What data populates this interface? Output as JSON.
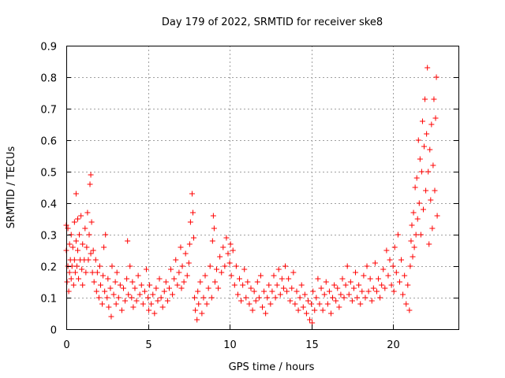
{
  "chart_data": {
    "type": "scatter",
    "title": "Day 179 of 2022, SRMTID for receiver ske8",
    "xlabel": "GPS time / hours",
    "ylabel": "SRMTID / TECUs",
    "xlim": [
      0,
      24
    ],
    "ylim": [
      0,
      0.9
    ],
    "xticks": [
      0,
      5,
      10,
      15,
      20
    ],
    "yticks": [
      0,
      0.1,
      0.2,
      0.3,
      0.4,
      0.5,
      0.6,
      0.7,
      0.8,
      0.9
    ],
    "ytick_labels": [
      "0",
      "0.1",
      "0.2",
      "0.3",
      "0.4",
      "0.5",
      "0.6",
      "0.7",
      "0.8",
      "0.9"
    ],
    "grid": true,
    "marker": "+",
    "color": "#ff0000",
    "series": [
      {
        "name": "ske8",
        "points": [
          [
            0.0,
            0.25
          ],
          [
            0.0,
            0.33
          ],
          [
            0.05,
            0.15
          ],
          [
            0.1,
            0.2
          ],
          [
            0.1,
            0.32
          ],
          [
            0.15,
            0.12
          ],
          [
            0.2,
            0.18
          ],
          [
            0.2,
            0.27
          ],
          [
            0.25,
            0.22
          ],
          [
            0.3,
            0.16
          ],
          [
            0.3,
            0.3
          ],
          [
            0.35,
            0.2
          ],
          [
            0.4,
            0.26
          ],
          [
            0.45,
            0.14
          ],
          [
            0.5,
            0.22
          ],
          [
            0.5,
            0.34
          ],
          [
            0.55,
            0.18
          ],
          [
            0.6,
            0.43
          ],
          [
            0.6,
            0.28
          ],
          [
            0.65,
            0.2
          ],
          [
            0.7,
            0.35
          ],
          [
            0.7,
            0.25
          ],
          [
            0.75,
            0.16
          ],
          [
            0.8,
            0.3
          ],
          [
            0.85,
            0.22
          ],
          [
            0.9,
            0.36
          ],
          [
            0.95,
            0.19
          ],
          [
            1.0,
            0.27
          ],
          [
            1.0,
            0.14
          ],
          [
            1.1,
            0.22
          ],
          [
            1.15,
            0.32
          ],
          [
            1.2,
            0.18
          ],
          [
            1.25,
            0.26
          ],
          [
            1.3,
            0.37
          ],
          [
            1.35,
            0.22
          ],
          [
            1.4,
            0.3
          ],
          [
            1.45,
            0.46
          ],
          [
            1.5,
            0.49
          ],
          [
            1.5,
            0.24
          ],
          [
            1.55,
            0.34
          ],
          [
            1.6,
            0.18
          ],
          [
            1.65,
            0.25
          ],
          [
            1.7,
            0.15
          ],
          [
            1.8,
            0.22
          ],
          [
            1.85,
            0.12
          ],
          [
            1.9,
            0.18
          ],
          [
            2.0,
            0.1
          ],
          [
            2.05,
            0.2
          ],
          [
            2.1,
            0.14
          ],
          [
            2.2,
            0.08
          ],
          [
            2.25,
            0.17
          ],
          [
            2.3,
            0.26
          ],
          [
            2.35,
            0.12
          ],
          [
            2.4,
            0.3
          ],
          [
            2.5,
            0.1
          ],
          [
            2.55,
            0.16
          ],
          [
            2.6,
            0.07
          ],
          [
            2.7,
            0.13
          ],
          [
            2.75,
            0.04
          ],
          [
            2.8,
            0.2
          ],
          [
            2.9,
            0.11
          ],
          [
            3.0,
            0.15
          ],
          [
            3.05,
            0.08
          ],
          [
            3.1,
            0.18
          ],
          [
            3.2,
            0.1
          ],
          [
            3.3,
            0.14
          ],
          [
            3.4,
            0.06
          ],
          [
            3.5,
            0.13
          ],
          [
            3.6,
            0.09
          ],
          [
            3.7,
            0.16
          ],
          [
            3.75,
            0.28
          ],
          [
            3.8,
            0.11
          ],
          [
            3.9,
            0.2
          ],
          [
            4.0,
            0.1
          ],
          [
            4.05,
            0.15
          ],
          [
            4.1,
            0.07
          ],
          [
            4.2,
            0.13
          ],
          [
            4.3,
            0.09
          ],
          [
            4.4,
            0.17
          ],
          [
            4.5,
            0.11
          ],
          [
            4.6,
            0.14
          ],
          [
            4.7,
            0.08
          ],
          [
            4.8,
            0.12
          ],
          [
            4.9,
            0.19
          ],
          [
            5.0,
            0.1
          ],
          [
            5.05,
            0.06
          ],
          [
            5.1,
            0.14
          ],
          [
            5.2,
            0.08
          ],
          [
            5.3,
            0.11
          ],
          [
            5.4,
            0.05
          ],
          [
            5.5,
            0.13
          ],
          [
            5.6,
            0.09
          ],
          [
            5.7,
            0.16
          ],
          [
            5.8,
            0.1
          ],
          [
            5.9,
            0.07
          ],
          [
            6.0,
            0.12
          ],
          [
            6.1,
            0.15
          ],
          [
            6.2,
            0.09
          ],
          [
            6.3,
            0.13
          ],
          [
            6.4,
            0.19
          ],
          [
            6.5,
            0.11
          ],
          [
            6.6,
            0.16
          ],
          [
            6.7,
            0.22
          ],
          [
            6.8,
            0.14
          ],
          [
            6.9,
            0.18
          ],
          [
            7.0,
            0.26
          ],
          [
            7.05,
            0.13
          ],
          [
            7.1,
            0.2
          ],
          [
            7.2,
            0.15
          ],
          [
            7.3,
            0.24
          ],
          [
            7.4,
            0.17
          ],
          [
            7.5,
            0.21
          ],
          [
            7.55,
            0.27
          ],
          [
            7.6,
            0.34
          ],
          [
            7.7,
            0.43
          ],
          [
            7.75,
            0.37
          ],
          [
            7.8,
            0.29
          ],
          [
            7.85,
            0.1
          ],
          [
            7.9,
            0.06
          ],
          [
            8.0,
            0.03
          ],
          [
            8.05,
            0.12
          ],
          [
            8.1,
            0.08
          ],
          [
            8.2,
            0.15
          ],
          [
            8.3,
            0.05
          ],
          [
            8.4,
            0.1
          ],
          [
            8.5,
            0.17
          ],
          [
            8.6,
            0.08
          ],
          [
            8.7,
            0.13
          ],
          [
            8.8,
            0.2
          ],
          [
            8.9,
            0.1
          ],
          [
            8.95,
            0.28
          ],
          [
            9.0,
            0.36
          ],
          [
            9.05,
            0.32
          ],
          [
            9.1,
            0.15
          ],
          [
            9.2,
            0.19
          ],
          [
            9.3,
            0.13
          ],
          [
            9.4,
            0.23
          ],
          [
            9.5,
            0.18
          ],
          [
            9.6,
            0.26
          ],
          [
            9.7,
            0.2
          ],
          [
            9.8,
            0.29
          ],
          [
            9.9,
            0.24
          ],
          [
            10.0,
            0.21
          ],
          [
            10.05,
            0.27
          ],
          [
            10.1,
            0.17
          ],
          [
            10.2,
            0.25
          ],
          [
            10.3,
            0.14
          ],
          [
            10.4,
            0.2
          ],
          [
            10.5,
            0.11
          ],
          [
            10.6,
            0.16
          ],
          [
            10.7,
            0.09
          ],
          [
            10.8,
            0.14
          ],
          [
            10.9,
            0.19
          ],
          [
            11.0,
            0.1
          ],
          [
            11.1,
            0.15
          ],
          [
            11.2,
            0.08
          ],
          [
            11.3,
            0.13
          ],
          [
            11.4,
            0.06
          ],
          [
            11.5,
            0.12
          ],
          [
            11.6,
            0.09
          ],
          [
            11.7,
            0.15
          ],
          [
            11.8,
            0.1
          ],
          [
            11.9,
            0.17
          ],
          [
            12.0,
            0.07
          ],
          [
            12.1,
            0.12
          ],
          [
            12.2,
            0.05
          ],
          [
            12.3,
            0.1
          ],
          [
            12.4,
            0.14
          ],
          [
            12.5,
            0.08
          ],
          [
            12.6,
            0.12
          ],
          [
            12.7,
            0.17
          ],
          [
            12.8,
            0.1
          ],
          [
            12.9,
            0.14
          ],
          [
            13.0,
            0.19
          ],
          [
            13.1,
            0.11
          ],
          [
            13.2,
            0.16
          ],
          [
            13.3,
            0.13
          ],
          [
            13.4,
            0.2
          ],
          [
            13.5,
            0.12
          ],
          [
            13.6,
            0.16
          ],
          [
            13.7,
            0.09
          ],
          [
            13.8,
            0.13
          ],
          [
            13.9,
            0.18
          ],
          [
            14.0,
            0.08
          ],
          [
            14.1,
            0.12
          ],
          [
            14.2,
            0.06
          ],
          [
            14.3,
            0.1
          ],
          [
            14.4,
            0.14
          ],
          [
            14.5,
            0.07
          ],
          [
            14.6,
            0.11
          ],
          [
            14.7,
            0.05
          ],
          [
            14.8,
            0.09
          ],
          [
            14.9,
            0.03
          ],
          [
            15.0,
            0.08
          ],
          [
            15.05,
            0.02
          ],
          [
            15.1,
            0.12
          ],
          [
            15.2,
            0.06
          ],
          [
            15.3,
            0.1
          ],
          [
            15.4,
            0.16
          ],
          [
            15.5,
            0.08
          ],
          [
            15.6,
            0.13
          ],
          [
            15.7,
            0.06
          ],
          [
            15.8,
            0.11
          ],
          [
            15.9,
            0.15
          ],
          [
            16.0,
            0.08
          ],
          [
            16.1,
            0.12
          ],
          [
            16.2,
            0.05
          ],
          [
            16.3,
            0.1
          ],
          [
            16.4,
            0.14
          ],
          [
            16.5,
            0.09
          ],
          [
            16.6,
            0.13
          ],
          [
            16.7,
            0.07
          ],
          [
            16.8,
            0.11
          ],
          [
            16.9,
            0.16
          ],
          [
            17.0,
            0.1
          ],
          [
            17.1,
            0.14
          ],
          [
            17.2,
            0.2
          ],
          [
            17.3,
            0.11
          ],
          [
            17.4,
            0.15
          ],
          [
            17.5,
            0.09
          ],
          [
            17.6,
            0.13
          ],
          [
            17.7,
            0.18
          ],
          [
            17.8,
            0.1
          ],
          [
            17.9,
            0.14
          ],
          [
            18.0,
            0.08
          ],
          [
            18.1,
            0.12
          ],
          [
            18.2,
            0.17
          ],
          [
            18.3,
            0.1
          ],
          [
            18.4,
            0.2
          ],
          [
            18.5,
            0.12
          ],
          [
            18.6,
            0.16
          ],
          [
            18.7,
            0.09
          ],
          [
            18.8,
            0.13
          ],
          [
            18.9,
            0.21
          ],
          [
            19.0,
            0.12
          ],
          [
            19.1,
            0.16
          ],
          [
            19.2,
            0.1
          ],
          [
            19.3,
            0.14
          ],
          [
            19.4,
            0.19
          ],
          [
            19.5,
            0.13
          ],
          [
            19.6,
            0.25
          ],
          [
            19.7,
            0.17
          ],
          [
            19.8,
            0.22
          ],
          [
            19.9,
            0.14
          ],
          [
            20.0,
            0.2
          ],
          [
            20.05,
            0.12
          ],
          [
            20.1,
            0.26
          ],
          [
            20.2,
            0.18
          ],
          [
            20.3,
            0.3
          ],
          [
            20.4,
            0.15
          ],
          [
            20.5,
            0.22
          ],
          [
            20.6,
            0.11
          ],
          [
            20.7,
            0.17
          ],
          [
            20.8,
            0.08
          ],
          [
            20.9,
            0.14
          ],
          [
            21.0,
            0.06
          ],
          [
            21.05,
            0.2
          ],
          [
            21.1,
            0.28
          ],
          [
            21.15,
            0.33
          ],
          [
            21.2,
            0.23
          ],
          [
            21.25,
            0.37
          ],
          [
            21.3,
            0.26
          ],
          [
            21.35,
            0.45
          ],
          [
            21.4,
            0.3
          ],
          [
            21.45,
            0.48
          ],
          [
            21.5,
            0.35
          ],
          [
            21.55,
            0.6
          ],
          [
            21.6,
            0.4
          ],
          [
            21.65,
            0.54
          ],
          [
            21.7,
            0.3
          ],
          [
            21.75,
            0.5
          ],
          [
            21.8,
            0.66
          ],
          [
            21.85,
            0.38
          ],
          [
            21.9,
            0.58
          ],
          [
            21.95,
            0.73
          ],
          [
            22.0,
            0.44
          ],
          [
            22.05,
            0.62
          ],
          [
            22.1,
            0.83
          ],
          [
            22.15,
            0.5
          ],
          [
            22.2,
            0.27
          ],
          [
            22.25,
            0.57
          ],
          [
            22.3,
            0.41
          ],
          [
            22.35,
            0.65
          ],
          [
            22.4,
            0.32
          ],
          [
            22.45,
            0.52
          ],
          [
            22.5,
            0.73
          ],
          [
            22.55,
            0.44
          ],
          [
            22.6,
            0.67
          ],
          [
            22.65,
            0.8
          ],
          [
            22.7,
            0.36
          ]
        ]
      }
    ]
  }
}
